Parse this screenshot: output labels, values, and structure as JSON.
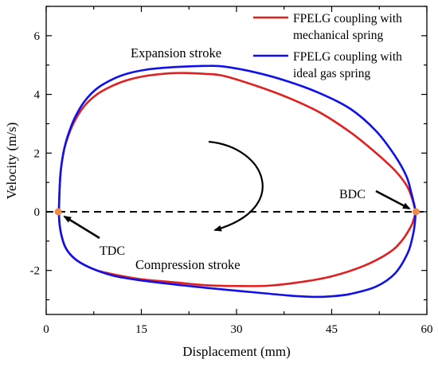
{
  "chart_data": {
    "type": "line",
    "xlabel": "Displacement (mm)",
    "ylabel": "Velocity (m/s)",
    "xlim": [
      0,
      60
    ],
    "ylim": [
      -3.5,
      7
    ],
    "xticks": [
      0,
      15,
      30,
      45,
      60
    ],
    "yticks": [
      -2,
      0,
      2,
      4,
      6
    ],
    "grid": false,
    "legend_position": "top-right",
    "colors": {
      "red": "#e02020",
      "blue": "#1010e8",
      "dot": "#f08a4b"
    },
    "series": [
      {
        "name": "FPELG coupling with mechanical spring",
        "color": "#e02020",
        "x": [
          2.0,
          2.1,
          2.3,
          2.8,
          3.5,
          4.5,
          6.0,
          8.0,
          10.5,
          13.0,
          16.0,
          19.5,
          22.0,
          25.0,
          28.0,
          33.0,
          38.0,
          43.0,
          48.0,
          52.0,
          55.0,
          56.8,
          57.6,
          58.0,
          58.2,
          58.0,
          57.5,
          56.0,
          54.0,
          50.0,
          45.0,
          40.0,
          35.0,
          30.0,
          25.0,
          20.0,
          15.0,
          11.0,
          8.0,
          5.5,
          4.0,
          3.0,
          2.4,
          2.1,
          2.0
        ],
        "y": [
          0.0,
          0.7,
          1.4,
          2.1,
          2.6,
          3.1,
          3.6,
          4.0,
          4.3,
          4.5,
          4.64,
          4.72,
          4.73,
          4.7,
          4.63,
          4.3,
          3.9,
          3.4,
          2.7,
          2.0,
          1.4,
          0.9,
          0.5,
          0.2,
          0.0,
          -0.2,
          -0.5,
          -1.0,
          -1.4,
          -1.85,
          -2.2,
          -2.4,
          -2.52,
          -2.53,
          -2.5,
          -2.4,
          -2.3,
          -2.15,
          -2.0,
          -1.75,
          -1.5,
          -1.2,
          -0.8,
          -0.4,
          0.0
        ]
      },
      {
        "name": "FPELG coupling with ideal gas spring",
        "color": "#1010e8",
        "x": [
          2.0,
          2.1,
          2.3,
          2.8,
          3.5,
          4.5,
          6.0,
          8.0,
          10.5,
          13.0,
          16.0,
          19.5,
          22.0,
          25.0,
          28.0,
          33.0,
          38.0,
          43.0,
          48.0,
          52.0,
          55.0,
          56.8,
          57.6,
          58.0,
          58.2,
          58.1,
          57.8,
          57.0,
          55.0,
          52.0,
          48.0,
          45.0,
          42.0,
          38.0,
          33.0,
          28.0,
          22.0,
          16.0,
          11.0,
          8.0,
          5.5,
          4.0,
          3.0,
          2.4,
          2.1,
          2.0
        ],
        "y": [
          0.0,
          0.7,
          1.4,
          2.1,
          2.65,
          3.2,
          3.75,
          4.2,
          4.52,
          4.72,
          4.85,
          4.92,
          4.95,
          4.97,
          4.95,
          4.75,
          4.45,
          4.05,
          3.5,
          2.75,
          1.9,
          1.2,
          0.6,
          0.25,
          0.0,
          -0.4,
          -0.8,
          -1.4,
          -2.1,
          -2.55,
          -2.8,
          -2.88,
          -2.9,
          -2.85,
          -2.75,
          -2.65,
          -2.52,
          -2.37,
          -2.2,
          -2.0,
          -1.75,
          -1.5,
          -1.2,
          -0.8,
          -0.4,
          0.0
        ]
      }
    ],
    "points": [
      {
        "x": 1.9,
        "y": 0.0
      },
      {
        "x": 58.3,
        "y": 0.0
      }
    ],
    "annotations": [
      {
        "text": "Expansion stroke",
        "x": 22.0,
        "y": 5.3
      },
      {
        "text": "Compression stroke",
        "x": 25.0,
        "y": -1.9
      },
      {
        "text": "TDC",
        "x": 10.5,
        "y": -1.35
      },
      {
        "text": "BDC",
        "x": 49.0,
        "y": 0.55
      }
    ]
  }
}
